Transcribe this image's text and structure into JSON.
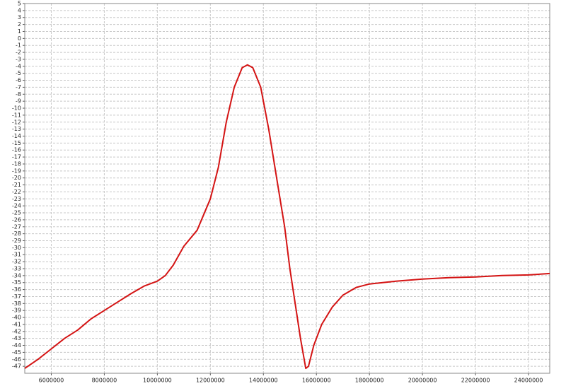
{
  "chart_data": {
    "type": "line",
    "color": "#d41414",
    "grid": true,
    "xlim": [
      5000000,
      24800000
    ],
    "ylim": [
      -48,
      5
    ],
    "xticks": [
      6000000,
      8000000,
      10000000,
      12000000,
      14000000,
      16000000,
      18000000,
      20000000,
      22000000,
      24000000
    ],
    "yticks": [
      5,
      4,
      3,
      2,
      1,
      0,
      -1,
      -2,
      -3,
      -4,
      -5,
      -6,
      -7,
      -8,
      -9,
      -10,
      -11,
      -12,
      -13,
      -14,
      -15,
      -16,
      -17,
      -18,
      -19,
      -20,
      -21,
      -22,
      -23,
      -24,
      -25,
      -26,
      -27,
      -28,
      -29,
      -30,
      -31,
      -32,
      -33,
      -34,
      -35,
      -36,
      -37,
      -38,
      -39,
      -40,
      -41,
      -42,
      -43,
      -44,
      -45,
      -46,
      -47
    ],
    "x": [
      5000000,
      5500000,
      6000000,
      6500000,
      7000000,
      7500000,
      8000000,
      8500000,
      9000000,
      9500000,
      10000000,
      10300000,
      10600000,
      11000000,
      11500000,
      12000000,
      12300000,
      12600000,
      12900000,
      13200000,
      13400000,
      13600000,
      13900000,
      14200000,
      14500000,
      14800000,
      15000000,
      15200000,
      15400000,
      15600000,
      15700000,
      15900000,
      16200000,
      16600000,
      17000000,
      17500000,
      18000000,
      19000000,
      20000000,
      21000000,
      22000000,
      23000000,
      24000000,
      24800000
    ],
    "values": [
      -47.3,
      -46,
      -44.5,
      -43,
      -41.8,
      -40.2,
      -39,
      -37.8,
      -36.6,
      -35.5,
      -34.8,
      -34,
      -32.5,
      -29.8,
      -27.5,
      -23,
      -18.5,
      -12,
      -7,
      -4.2,
      -3.8,
      -4.2,
      -7,
      -13,
      -20,
      -27,
      -33,
      -38,
      -43,
      -47.3,
      -47,
      -44,
      -41,
      -38.5,
      -36.8,
      -35.7,
      -35.2,
      -34.8,
      -34.5,
      -34.3,
      -34.2,
      -34,
      -33.9,
      -33.7
    ]
  }
}
